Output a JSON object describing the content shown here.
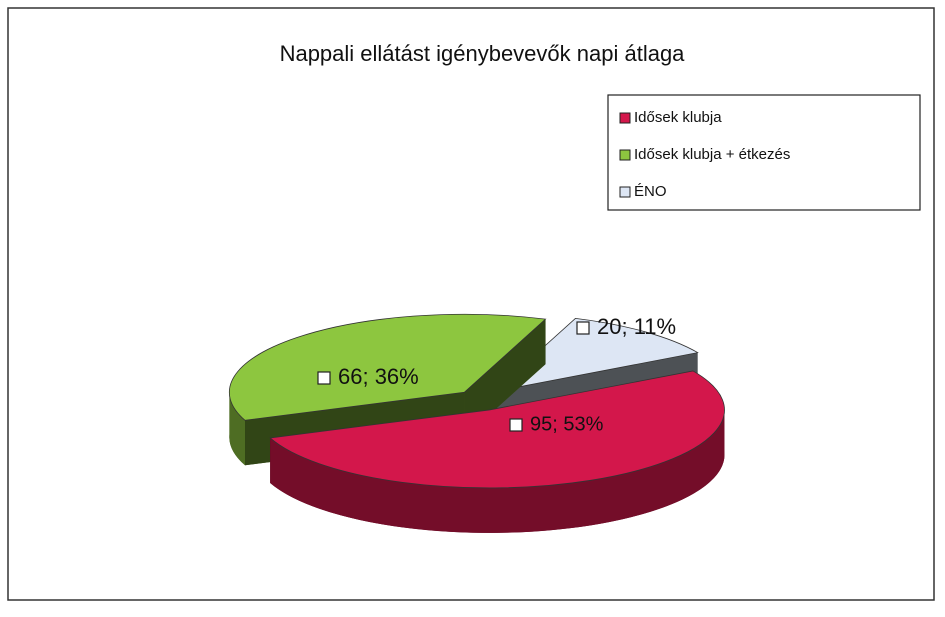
{
  "chart_data": {
    "type": "pie",
    "title": "Nappali ellátást igénybevevők napi átlaga",
    "categories": [
      "Idősek klubja",
      "Idősek klubja + étkezés",
      "ÉNO"
    ],
    "values": [
      95,
      66,
      20
    ],
    "value_labels": [
      "95; 53%",
      "66; 36%",
      "20; 11%"
    ],
    "colors": [
      "#d3174b",
      "#8dc63f",
      "#dde6f4"
    ],
    "legend": "top-right"
  }
}
